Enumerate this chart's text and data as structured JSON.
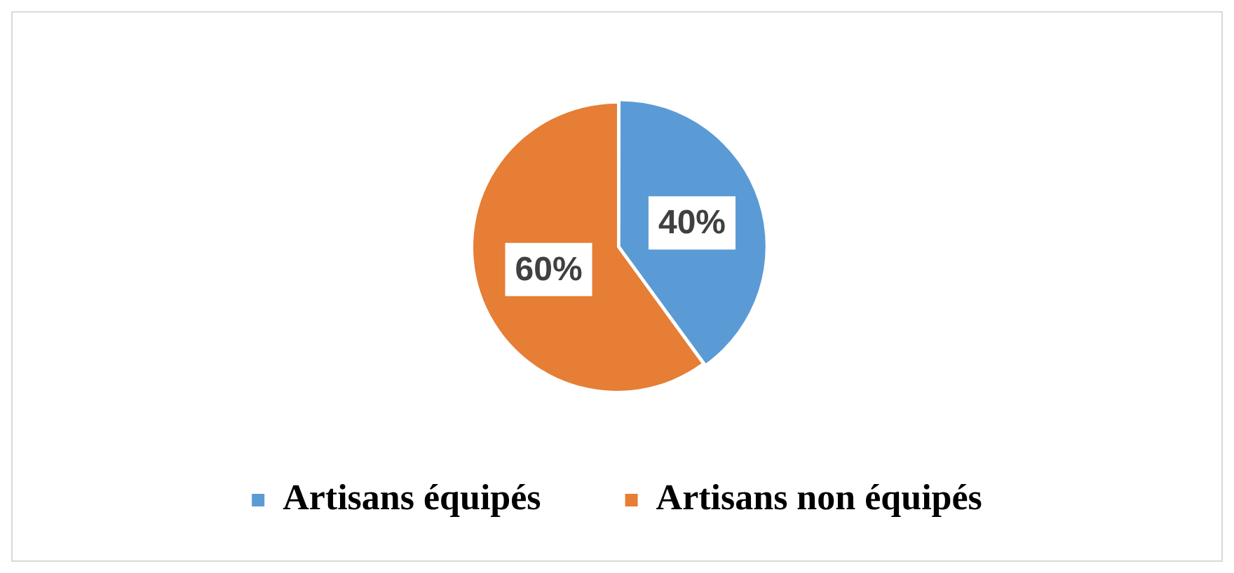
{
  "chart_data": {
    "type": "pie",
    "categories": [
      "Artisans équipés",
      "Artisans non équipés"
    ],
    "values": [
      40,
      60
    ],
    "colors": [
      "#5b9bd5",
      "#e67e35"
    ],
    "value_labels": [
      "40%",
      "60%"
    ],
    "legend": "bottom"
  }
}
